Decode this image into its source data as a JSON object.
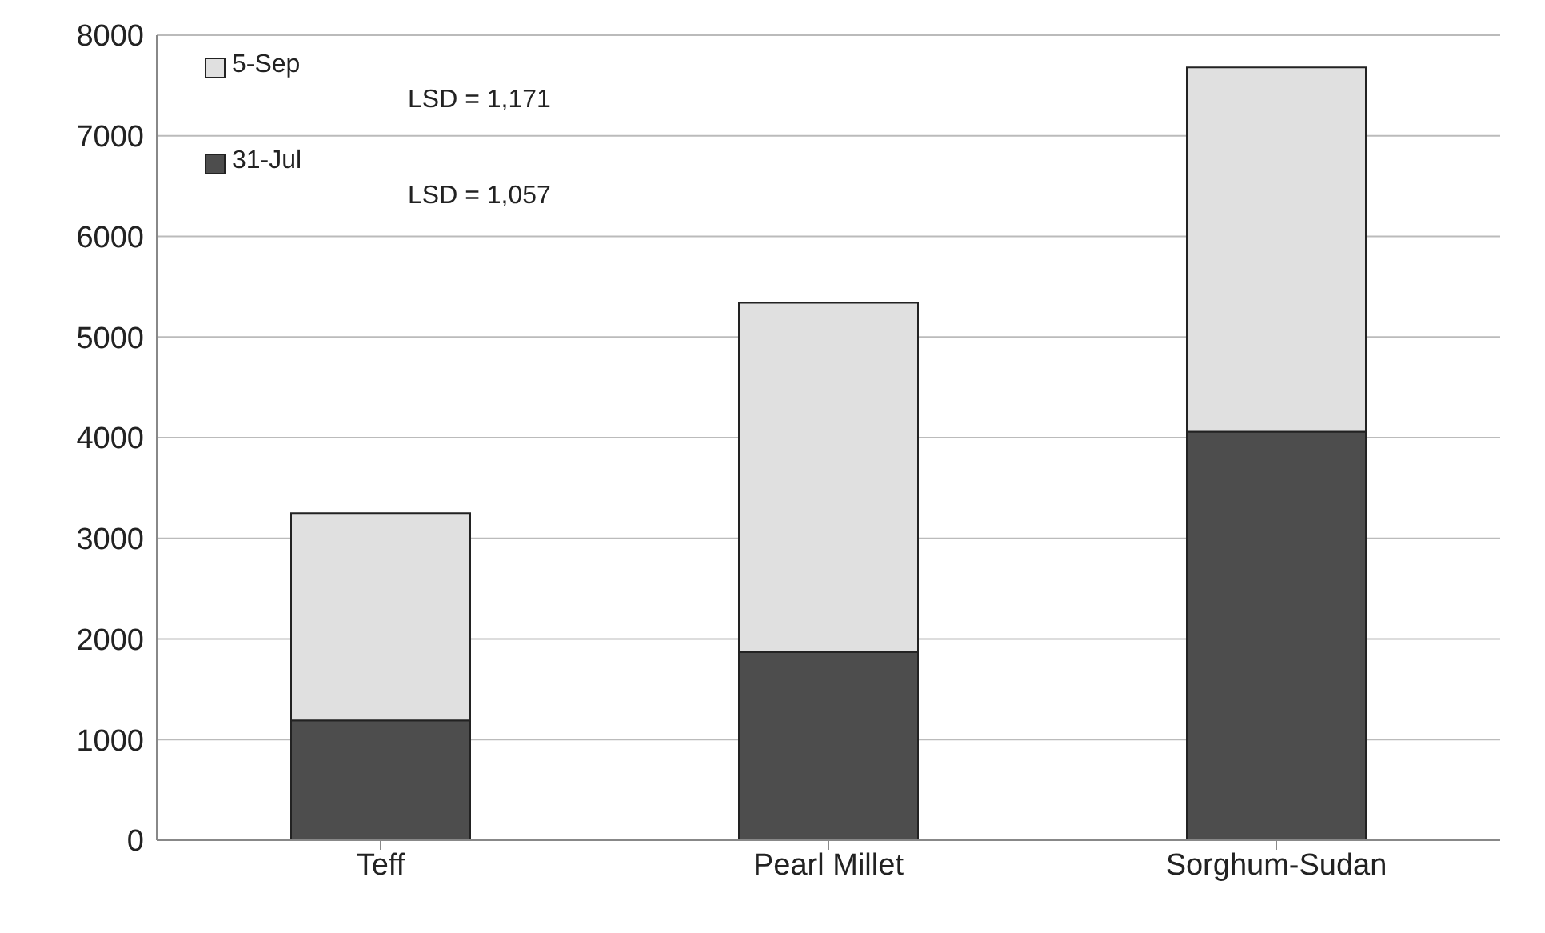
{
  "chart_data": {
    "type": "bar",
    "categories": [
      "Teff",
      "Pearl Millet",
      "Sorghum-Sudan"
    ],
    "stacked": true,
    "series": [
      {
        "name": "31-Jul",
        "color": "#4d4d4d",
        "values": [
          1190,
          1870,
          4060
        ]
      },
      {
        "name": "5-Sep",
        "color": "#e0e0e0",
        "values": [
          2060,
          3470,
          3620
        ]
      }
    ],
    "ylim": [
      0,
      8000
    ],
    "yticks": [
      0,
      1000,
      2000,
      3000,
      4000,
      5000,
      6000,
      7000,
      8000
    ],
    "grid": "y",
    "legend": "top left",
    "annotations": [
      "LSD = 1,171",
      "LSD = 1,057"
    ]
  }
}
